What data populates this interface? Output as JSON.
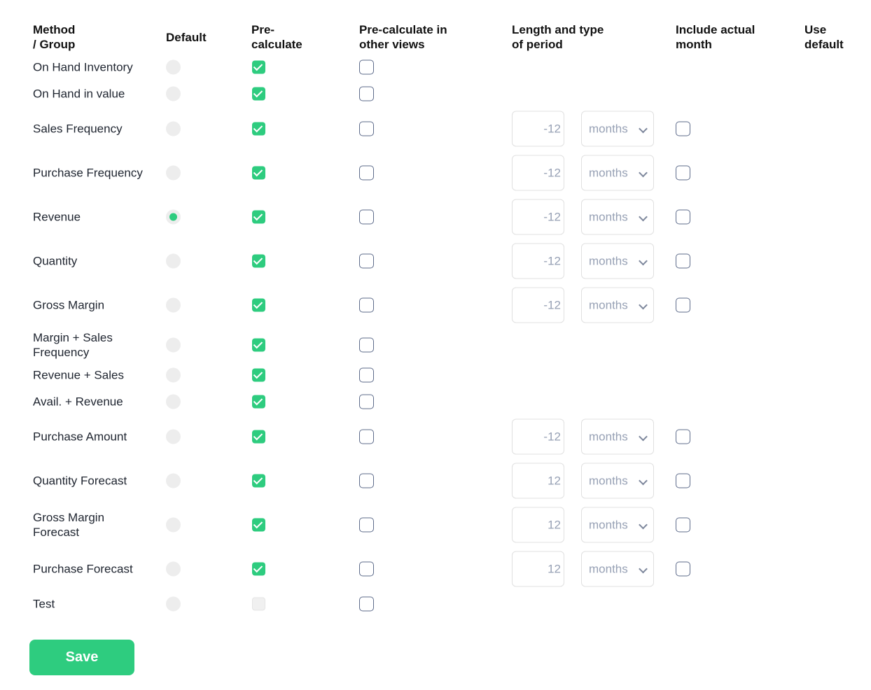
{
  "headers": {
    "method": "Method\n/ Group",
    "default": "Default",
    "precalc": "Pre-\ncalculate",
    "other": "Pre-calculate in\nother views",
    "length": "Length and type\nof period",
    "include": "Include actual\nmonth",
    "use_default": "Use\ndefault"
  },
  "rows": [
    {
      "name": "On Hand Inventory",
      "default": false,
      "precalc": "checked",
      "other": false
    },
    {
      "name": "On Hand in value",
      "default": false,
      "precalc": "checked",
      "other": false
    },
    {
      "name": "Sales Frequency",
      "default": false,
      "precalc": "checked",
      "other": false,
      "period": "-12",
      "unit": "months",
      "include": false
    },
    {
      "name": "Purchase Frequency",
      "default": false,
      "precalc": "checked",
      "other": false,
      "period": "-12",
      "unit": "months",
      "include": false
    },
    {
      "name": "Revenue",
      "default": true,
      "precalc": "checked",
      "other": false,
      "period": "-12",
      "unit": "months",
      "include": false
    },
    {
      "name": "Quantity",
      "default": false,
      "precalc": "checked",
      "other": false,
      "period": "-12",
      "unit": "months",
      "include": false
    },
    {
      "name": "Gross Margin",
      "default": false,
      "precalc": "checked",
      "other": false,
      "period": "-12",
      "unit": "months",
      "include": false
    },
    {
      "name": "Margin + Sales Frequency",
      "default": false,
      "precalc": "checked",
      "other": false
    },
    {
      "name": "Revenue + Sales",
      "default": false,
      "precalc": "checked",
      "other": false
    },
    {
      "name": "Avail. + Revenue",
      "default": false,
      "precalc": "checked",
      "other": false
    },
    {
      "name": "Purchase Amount",
      "default": false,
      "precalc": "checked",
      "other": false,
      "period": "-12",
      "unit": "months",
      "include": false
    },
    {
      "name": "Quantity Forecast",
      "default": false,
      "precalc": "checked",
      "other": false,
      "period": "12",
      "unit": "months",
      "include": false
    },
    {
      "name": "Gross Margin Forecast",
      "default": false,
      "precalc": "checked",
      "other": false,
      "period": "12",
      "unit": "months",
      "include": false
    },
    {
      "name": "Purchase Forecast",
      "default": false,
      "precalc": "checked",
      "other": false,
      "period": "12",
      "unit": "months",
      "include": false
    },
    {
      "name": "Test",
      "default": false,
      "precalc": "disabled",
      "other": false
    }
  ],
  "save_label": "Save",
  "colors": {
    "accent": "#2ecc7f",
    "checkbox_border": "#5d6b8a",
    "muted_text": "#97a1b5"
  }
}
